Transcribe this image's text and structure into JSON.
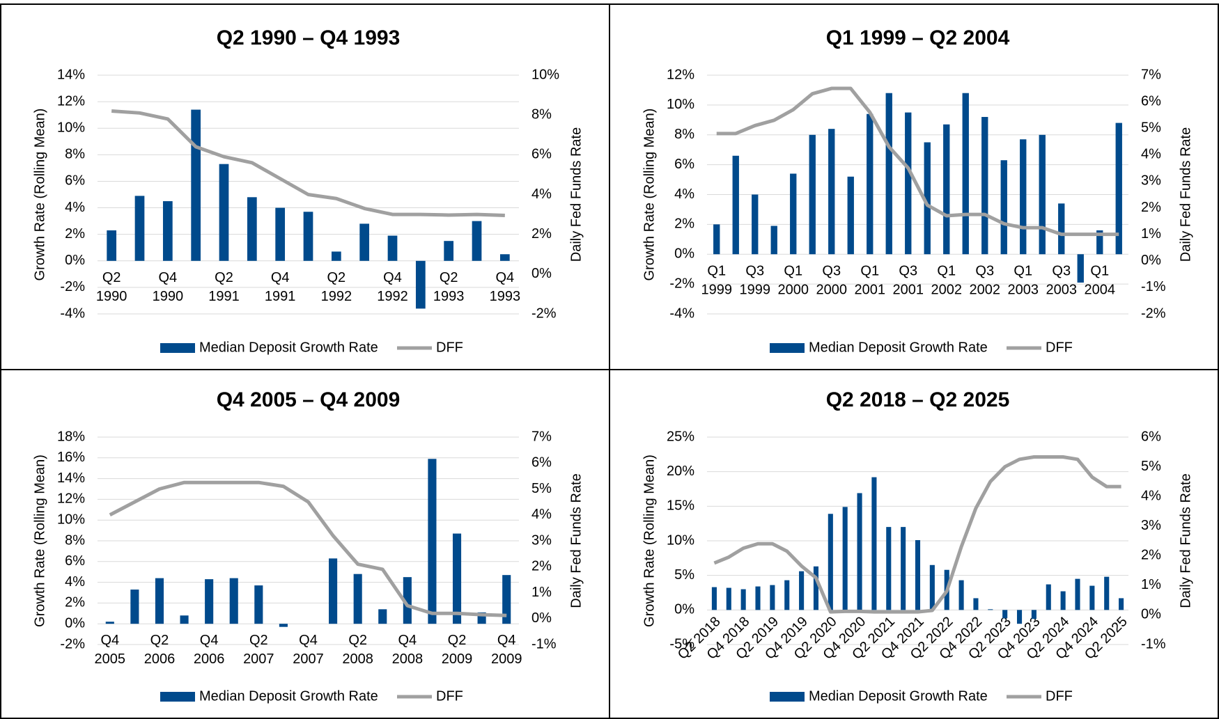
{
  "chart_data": [
    {
      "type": "bar-line",
      "title": "Q2 1990 – Q4 1993",
      "y_label": "Growth Rate (Rolling Mean)",
      "y2_label": "Daily Fed Funds Rate",
      "categories": [
        "Q2 1990",
        null,
        "Q4 1990",
        null,
        "Q2 1991",
        null,
        "Q4 1991",
        null,
        "Q2 1992",
        null,
        "Q4 1992",
        null,
        "Q2 1993",
        null,
        "Q4 1993"
      ],
      "series": [
        {
          "name": "Median Deposit Growth Rate",
          "color": "#004a8c",
          "values": [
            2.3,
            4.9,
            4.5,
            11.4,
            7.3,
            4.8,
            4.0,
            3.7,
            0.7,
            2.8,
            1.9,
            -3.6,
            1.5,
            3.0,
            0.5
          ]
        },
        {
          "name": "DFF",
          "color": "#a0a0a0",
          "axis": "y2",
          "values": [
            8.2,
            8.1,
            7.8,
            6.4,
            5.9,
            5.6,
            4.8,
            4.0,
            3.8,
            3.3,
            3.0,
            3.0,
            2.97,
            3.0,
            2.95
          ]
        }
      ],
      "ylim": [
        -4,
        14
      ],
      "yticks": [
        {
          "value": -4,
          "label": "-4%"
        },
        {
          "value": -2,
          "label": "-2%"
        },
        {
          "value": 0,
          "label": "0%"
        },
        {
          "value": 2,
          "label": "2%"
        },
        {
          "value": 4,
          "label": "4%"
        },
        {
          "value": 6,
          "label": "6%"
        },
        {
          "value": 8,
          "label": "8%"
        },
        {
          "value": 10,
          "label": "10%"
        },
        {
          "value": 12,
          "label": "12%"
        },
        {
          "value": 14,
          "label": "14%"
        }
      ],
      "y2lim": [
        -2,
        10
      ],
      "y2ticks": [
        {
          "value": -2,
          "label": "-2%"
        },
        {
          "value": 0,
          "label": "0%"
        },
        {
          "value": 2,
          "label": "2%"
        },
        {
          "value": 4,
          "label": "4%"
        },
        {
          "value": 6,
          "label": "6%"
        },
        {
          "value": 8,
          "label": "8%"
        },
        {
          "value": 10,
          "label": "10%"
        }
      ],
      "grid": true,
      "rotate_labels": false
    },
    {
      "type": "bar-line",
      "title": "Q1 1999 – Q2 2004",
      "y_label": "Growth Rate (Rolling Mean)",
      "y2_label": "Daily Fed Funds Rate",
      "categories": [
        "Q1 1999",
        null,
        "Q3 1999",
        null,
        "Q1 2000",
        null,
        "Q3 2000",
        null,
        "Q1 2001",
        null,
        "Q3 2001",
        null,
        "Q1 2002",
        null,
        "Q3 2002",
        null,
        "Q1 2003",
        null,
        "Q3 2003",
        null,
        "Q1 2004",
        null
      ],
      "series": [
        {
          "name": "Median Deposit Growth Rate",
          "color": "#004a8c",
          "values": [
            2.0,
            6.6,
            4.0,
            1.9,
            5.4,
            8.0,
            8.4,
            5.2,
            9.4,
            10.8,
            9.5,
            7.5,
            8.7,
            10.8,
            9.2,
            6.3,
            7.7,
            8.0,
            3.4,
            -1.9,
            1.6,
            8.8
          ]
        },
        {
          "name": "DFF",
          "color": "#a0a0a0",
          "axis": "y2",
          "values": [
            4.8,
            4.8,
            5.1,
            5.3,
            5.7,
            6.3,
            6.5,
            6.5,
            5.6,
            4.3,
            3.5,
            2.1,
            1.7,
            1.75,
            1.75,
            1.4,
            1.25,
            1.25,
            1.0,
            1.0,
            1.0,
            1.0
          ]
        }
      ],
      "ylim": [
        -4,
        12
      ],
      "yticks": [
        {
          "value": -4,
          "label": "-4%"
        },
        {
          "value": -2,
          "label": "-2%"
        },
        {
          "value": 0,
          "label": "0%"
        },
        {
          "value": 2,
          "label": "2%"
        },
        {
          "value": 4,
          "label": "4%"
        },
        {
          "value": 6,
          "label": "6%"
        },
        {
          "value": 8,
          "label": "8%"
        },
        {
          "value": 10,
          "label": "10%"
        },
        {
          "value": 12,
          "label": "12%"
        }
      ],
      "y2lim": [
        -2,
        7
      ],
      "y2ticks": [
        {
          "value": -2,
          "label": "-2%"
        },
        {
          "value": -1,
          "label": "-1%"
        },
        {
          "value": 0,
          "label": "0%"
        },
        {
          "value": 1,
          "label": "1%"
        },
        {
          "value": 2,
          "label": "2%"
        },
        {
          "value": 3,
          "label": "3%"
        },
        {
          "value": 4,
          "label": "4%"
        },
        {
          "value": 5,
          "label": "5%"
        },
        {
          "value": 6,
          "label": "6%"
        },
        {
          "value": 7,
          "label": "7%"
        }
      ],
      "grid": true,
      "rotate_labels": false
    },
    {
      "type": "bar-line",
      "title": "Q4 2005 – Q4 2009",
      "y_label": "Growth Rate (Rolling Mean)",
      "y2_label": "Daily Fed Funds Rate",
      "categories": [
        "Q4 2005",
        null,
        "Q2 2006",
        null,
        "Q4 2006",
        null,
        "Q2 2007",
        null,
        "Q4 2007",
        null,
        "Q2 2008",
        null,
        "Q4 2008",
        null,
        "Q2 2009",
        null,
        "Q4 2009"
      ],
      "series": [
        {
          "name": "Median Deposit Growth Rate",
          "color": "#004a8c",
          "values": [
            0.2,
            3.3,
            4.4,
            0.8,
            4.3,
            4.4,
            3.7,
            -0.3,
            0.0,
            6.3,
            4.8,
            1.4,
            4.5,
            15.9,
            8.7,
            1.1,
            4.7
          ]
        },
        {
          "name": "DFF",
          "color": "#a0a0a0",
          "axis": "y2",
          "values": [
            4.0,
            4.5,
            5.0,
            5.25,
            5.25,
            5.25,
            5.25,
            5.1,
            4.5,
            3.2,
            2.1,
            1.9,
            0.5,
            0.2,
            0.2,
            0.15,
            0.12
          ]
        }
      ],
      "ylim": [
        -2,
        18
      ],
      "yticks": [
        {
          "value": -2,
          "label": "-2%"
        },
        {
          "value": 0,
          "label": "0%"
        },
        {
          "value": 2,
          "label": "2%"
        },
        {
          "value": 4,
          "label": "4%"
        },
        {
          "value": 6,
          "label": "6%"
        },
        {
          "value": 8,
          "label": "8%"
        },
        {
          "value": 10,
          "label": "10%"
        },
        {
          "value": 12,
          "label": "12%"
        },
        {
          "value": 14,
          "label": "14%"
        },
        {
          "value": 16,
          "label": "16%"
        },
        {
          "value": 18,
          "label": "18%"
        }
      ],
      "y2lim": [
        -1,
        7
      ],
      "y2ticks": [
        {
          "value": -1,
          "label": "-1%"
        },
        {
          "value": 0,
          "label": "0%"
        },
        {
          "value": 1,
          "label": "1%"
        },
        {
          "value": 2,
          "label": "2%"
        },
        {
          "value": 3,
          "label": "3%"
        },
        {
          "value": 4,
          "label": "4%"
        },
        {
          "value": 5,
          "label": "5%"
        },
        {
          "value": 6,
          "label": "6%"
        },
        {
          "value": 7,
          "label": "7%"
        }
      ],
      "grid": true,
      "rotate_labels": false
    },
    {
      "type": "bar-line",
      "title": "Q2 2018 – Q2 2025",
      "y_label": "Growth Rate (Rolling Mean)",
      "y2_label": "Daily Fed Funds Rate",
      "categories": [
        "Q2 2018",
        null,
        "Q4 2018",
        null,
        "Q2 2019",
        null,
        "Q4 2019",
        null,
        "Q2 2020",
        null,
        "Q4 2020",
        null,
        "Q2 2021",
        null,
        "Q4 2021",
        null,
        "Q2 2022",
        null,
        "Q4 2022",
        null,
        "Q2 2023",
        null,
        "Q4 2023",
        null,
        "Q2 2024",
        null,
        "Q4 2024",
        null,
        "Q2 2025"
      ],
      "series": [
        {
          "name": "Median Deposit Growth Rate",
          "color": "#004a8c",
          "values": [
            3.3,
            3.2,
            3.0,
            3.4,
            3.6,
            4.3,
            5.6,
            6.3,
            13.9,
            14.9,
            16.9,
            19.2,
            12.0,
            12.0,
            10.1,
            6.5,
            5.8,
            4.3,
            1.7,
            0.1,
            -1.2,
            -2.0,
            -1.3,
            3.7,
            2.7,
            4.5,
            3.5,
            4.8,
            1.7
          ]
        },
        {
          "name": "DFF",
          "color": "#a0a0a0",
          "axis": "y2",
          "values": [
            1.75,
            1.95,
            2.25,
            2.4,
            2.4,
            2.15,
            1.65,
            1.25,
            0.1,
            0.12,
            0.12,
            0.1,
            0.1,
            0.1,
            0.1,
            0.15,
            0.8,
            2.3,
            3.6,
            4.5,
            5.0,
            5.25,
            5.33,
            5.33,
            5.33,
            5.25,
            4.65,
            4.33,
            4.33
          ]
        }
      ],
      "ylim": [
        -5,
        25
      ],
      "yticks": [
        {
          "value": -5,
          "label": "-5%"
        },
        {
          "value": 0,
          "label": "0%"
        },
        {
          "value": 5,
          "label": "5%"
        },
        {
          "value": 10,
          "label": "10%"
        },
        {
          "value": 15,
          "label": "15%"
        },
        {
          "value": 20,
          "label": "20%"
        },
        {
          "value": 25,
          "label": "25%"
        }
      ],
      "y2lim": [
        -1,
        6
      ],
      "y2ticks": [
        {
          "value": -1,
          "label": "-1%"
        },
        {
          "value": 0,
          "label": "0%"
        },
        {
          "value": 1,
          "label": "1%"
        },
        {
          "value": 2,
          "label": "2%"
        },
        {
          "value": 3,
          "label": "3%"
        },
        {
          "value": 4,
          "label": "4%"
        },
        {
          "value": 5,
          "label": "5%"
        },
        {
          "value": 6,
          "label": "6%"
        }
      ],
      "grid": true,
      "rotate_labels": true
    }
  ]
}
